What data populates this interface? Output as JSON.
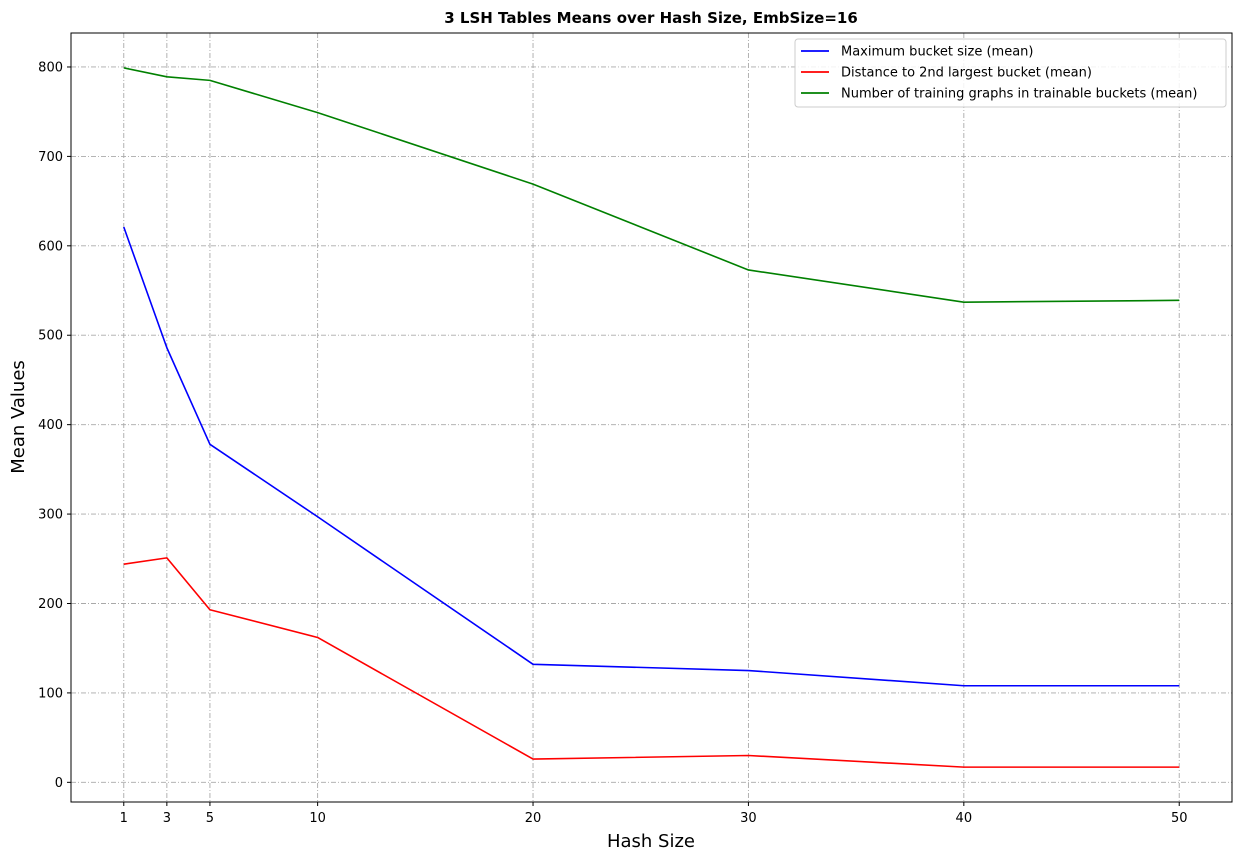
{
  "chart_data": {
    "type": "line",
    "title": "3 LSH Tables Means over Hash Size, EmbSize=16",
    "xlabel": "Hash Size",
    "ylabel": "Mean Values",
    "x": [
      1,
      3,
      5,
      10,
      20,
      30,
      40,
      50
    ],
    "xticks": [
      1,
      3,
      5,
      10,
      20,
      30,
      40,
      50
    ],
    "yticks": [
      0,
      100,
      200,
      300,
      400,
      500,
      600,
      700,
      800
    ],
    "xlim": [
      -1.45,
      52.45
    ],
    "ylim": [
      -22,
      838
    ],
    "grid": true,
    "legend_position": "top-right",
    "series": [
      {
        "name": "Maximum bucket size (mean)",
        "color": "#0000ff",
        "values": [
          621,
          486,
          378,
          297,
          132,
          125,
          108,
          108
        ]
      },
      {
        "name": "Distance to 2nd largest bucket (mean)",
        "color": "#ff0000",
        "values": [
          244,
          251,
          193,
          162,
          26,
          30,
          17,
          17
        ]
      },
      {
        "name": "Number of training graphs in trainable buckets (mean)",
        "color": "#008000",
        "values": [
          799,
          789,
          785,
          749,
          669,
          573,
          537,
          539
        ]
      }
    ]
  }
}
